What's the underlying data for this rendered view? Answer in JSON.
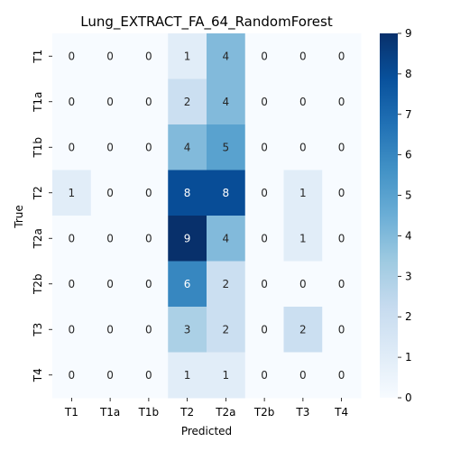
{
  "chart_data": {
    "type": "heatmap",
    "title": "Lung_EXTRACT_FA_64_RandomForest",
    "xlabel": "Predicted",
    "ylabel": "True",
    "x_categories": [
      "T1",
      "T1a",
      "T1b",
      "T2",
      "T2a",
      "T2b",
      "T3",
      "T4"
    ],
    "y_categories": [
      "T1",
      "T1a",
      "T1b",
      "T2",
      "T2a",
      "T2b",
      "T3",
      "T4"
    ],
    "values": [
      [
        0,
        0,
        0,
        1,
        4,
        0,
        0,
        0
      ],
      [
        0,
        0,
        0,
        2,
        4,
        0,
        0,
        0
      ],
      [
        0,
        0,
        0,
        4,
        5,
        0,
        0,
        0
      ],
      [
        1,
        0,
        0,
        8,
        8,
        0,
        1,
        0
      ],
      [
        0,
        0,
        0,
        9,
        4,
        0,
        1,
        0
      ],
      [
        0,
        0,
        0,
        6,
        2,
        0,
        0,
        0
      ],
      [
        0,
        0,
        0,
        3,
        2,
        0,
        2,
        0
      ],
      [
        0,
        0,
        0,
        1,
        1,
        0,
        0,
        0
      ]
    ],
    "colorbar": {
      "range": [
        0,
        9
      ],
      "ticks": [
        "0",
        "1",
        "2",
        "3",
        "4",
        "5",
        "6",
        "7",
        "8",
        "9"
      ]
    },
    "colormap": "Blues",
    "grid": false
  }
}
